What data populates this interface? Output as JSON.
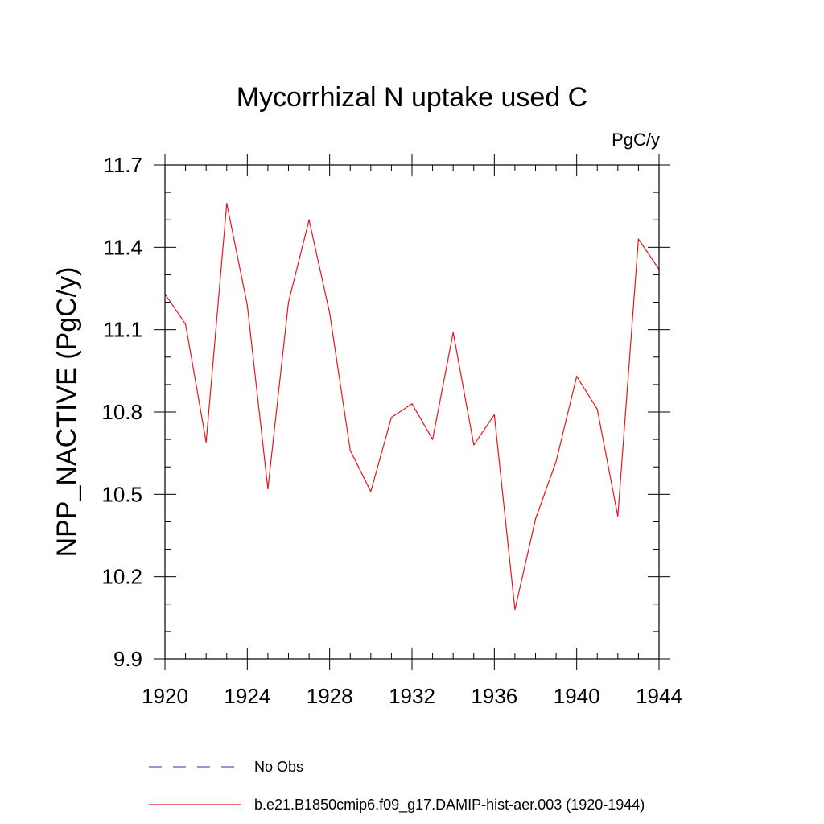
{
  "chart_data": {
    "type": "line",
    "title": "Mycorrhizal N uptake used C",
    "units": "PgC/y",
    "ylabel": "NPP_NACTIVE  (PgC/y)",
    "xlabel": "",
    "xlim": [
      1920,
      1944
    ],
    "ylim": [
      9.9,
      11.7
    ],
    "x_ticks": [
      1920,
      1924,
      1928,
      1932,
      1936,
      1940,
      1944
    ],
    "y_ticks": [
      9.9,
      10.2,
      10.5,
      10.8,
      11.1,
      11.4,
      11.7
    ],
    "y_tick_labels": [
      "9.9",
      "10.2",
      "10.5",
      "10.8",
      "11.1",
      "11.4",
      "11.7"
    ],
    "grid": false,
    "legend_position": "bottom",
    "series": [
      {
        "name": "No Obs",
        "color": "#5a5aa8",
        "dash": "dashed",
        "x": [],
        "y": []
      },
      {
        "name": "b.e21.B1850cmip6.f09_g17.DAMIP-hist-aer.003 (1920-1944)",
        "color": "#e8141c",
        "dash": "solid",
        "x": [
          1920,
          1921,
          1922,
          1923,
          1924,
          1925,
          1926,
          1927,
          1928,
          1929,
          1930,
          1931,
          1932,
          1933,
          1934,
          1935,
          1936,
          1937,
          1938,
          1939,
          1940,
          1941,
          1942,
          1943,
          1944
        ],
        "y": [
          11.23,
          11.12,
          10.69,
          11.56,
          11.19,
          10.52,
          11.2,
          11.5,
          11.16,
          10.66,
          10.51,
          10.78,
          10.83,
          10.7,
          11.09,
          10.68,
          10.79,
          10.08,
          10.41,
          10.62,
          10.93,
          10.81,
          10.42,
          11.43,
          11.32
        ]
      }
    ]
  }
}
